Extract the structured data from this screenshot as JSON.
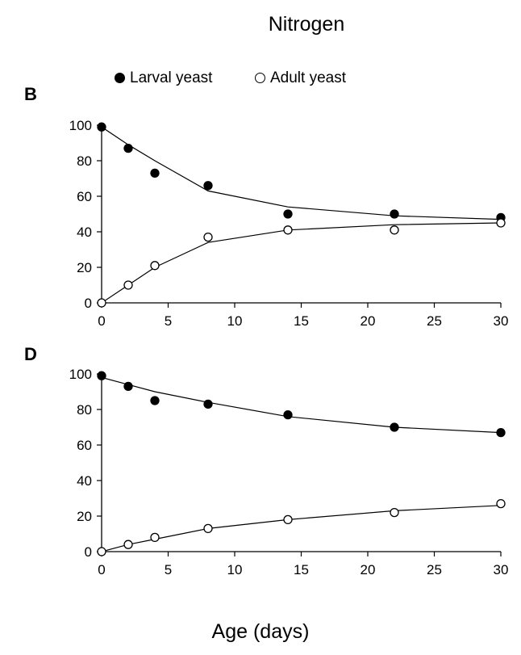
{
  "title": "Nitrogen",
  "xlabel": "Age (days)",
  "legend": {
    "larval": "Larval yeast",
    "adult": "Adult yeast"
  },
  "colors": {
    "marker_fill": "#000000",
    "line": "#000000"
  },
  "chart_data": [
    {
      "panel": "B",
      "type": "scatter",
      "x_ticks": [
        "0",
        "5",
        "10",
        "15",
        "20",
        "25",
        "30"
      ],
      "y_ticks": [
        "0",
        "20",
        "40",
        "60",
        "80",
        "100"
      ],
      "xlim": [
        0,
        30
      ],
      "ylim": [
        0,
        100
      ],
      "series": [
        {
          "name": "Larval yeast",
          "marker": "filled",
          "x": [
            0,
            2,
            4,
            8,
            14,
            22,
            30
          ],
          "y": [
            99,
            87,
            73,
            66,
            50,
            50,
            48
          ],
          "fit": [
            [
              0,
              99
            ],
            [
              2,
              89
            ],
            [
              4,
              80
            ],
            [
              8,
              63
            ],
            [
              14,
              54
            ],
            [
              22,
              49
            ],
            [
              30,
              47
            ]
          ]
        },
        {
          "name": "Adult yeast",
          "marker": "open",
          "x": [
            0,
            2,
            4,
            8,
            14,
            22,
            30
          ],
          "y": [
            0,
            10,
            21,
            37,
            41,
            41,
            45
          ],
          "fit": [
            [
              0,
              0
            ],
            [
              2,
              10
            ],
            [
              4,
              20
            ],
            [
              8,
              34
            ],
            [
              14,
              41
            ],
            [
              22,
              44
            ],
            [
              30,
              45
            ]
          ]
        }
      ]
    },
    {
      "panel": "D",
      "type": "scatter",
      "x_ticks": [
        "0",
        "5",
        "10",
        "15",
        "20",
        "25",
        "30"
      ],
      "y_ticks": [
        "0",
        "20",
        "40",
        "60",
        "80",
        "100"
      ],
      "xlim": [
        0,
        30
      ],
      "ylim": [
        0,
        100
      ],
      "series": [
        {
          "name": "Larval yeast",
          "marker": "filled",
          "x": [
            0,
            2,
            4,
            8,
            14,
            22,
            30
          ],
          "y": [
            99,
            93,
            85,
            83,
            77,
            70,
            67
          ],
          "fit": [
            [
              0,
              98
            ],
            [
              2,
              94
            ],
            [
              4,
              90
            ],
            [
              8,
              84
            ],
            [
              14,
              76
            ],
            [
              22,
              70
            ],
            [
              30,
              67
            ]
          ]
        },
        {
          "name": "Adult yeast",
          "marker": "open",
          "x": [
            0,
            2,
            4,
            8,
            14,
            22,
            30
          ],
          "y": [
            0,
            4,
            8,
            13,
            18,
            22,
            27
          ],
          "fit": [
            [
              0,
              0
            ],
            [
              2,
              4
            ],
            [
              4,
              7
            ],
            [
              8,
              13
            ],
            [
              14,
              18
            ],
            [
              22,
              23
            ],
            [
              30,
              26
            ]
          ]
        }
      ]
    }
  ]
}
